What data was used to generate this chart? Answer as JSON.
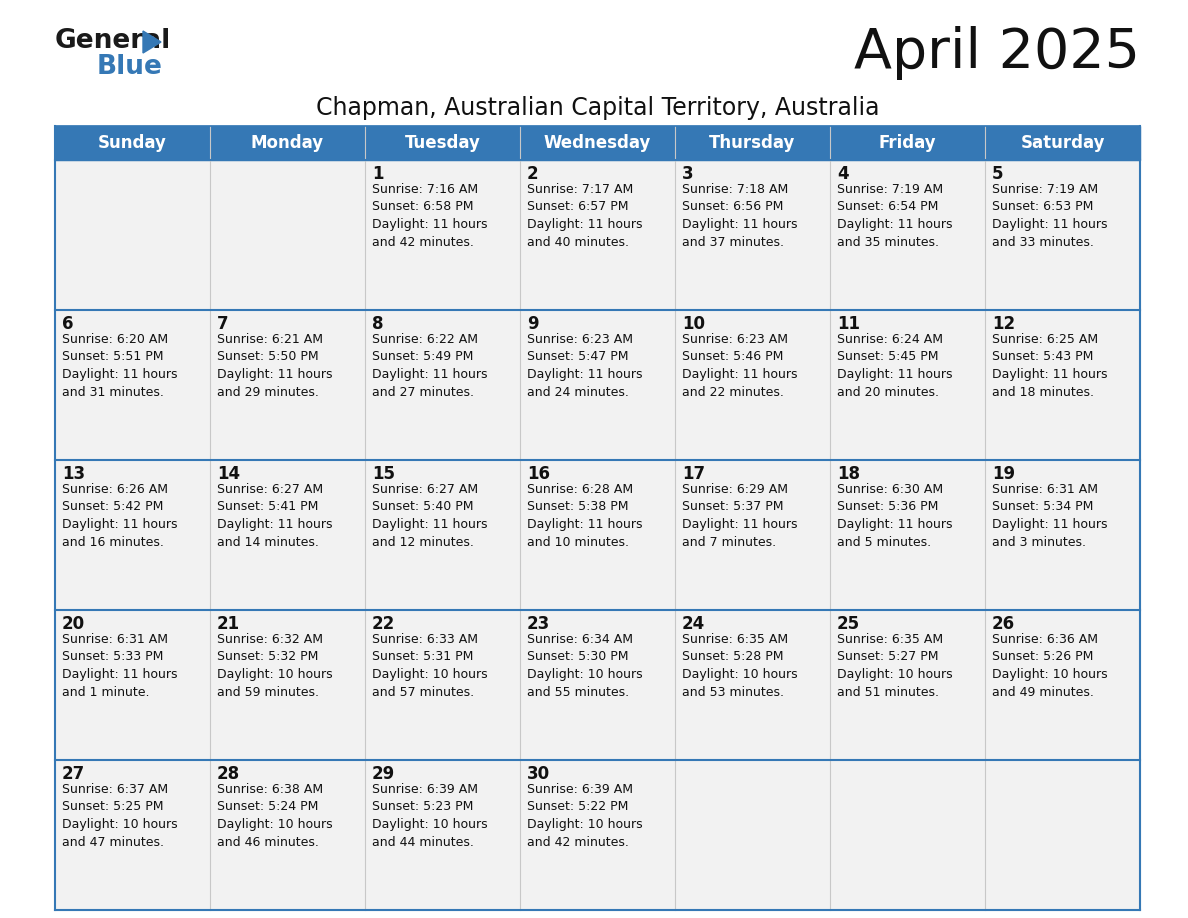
{
  "title": "April 2025",
  "subtitle": "Chapman, Australian Capital Territory, Australia",
  "header_color": "#3578b5",
  "header_text_color": "#ffffff",
  "cell_bg_color": "#f2f2f2",
  "border_color": "#3578b5",
  "days_of_week": [
    "Sunday",
    "Monday",
    "Tuesday",
    "Wednesday",
    "Thursday",
    "Friday",
    "Saturday"
  ],
  "weeks": [
    [
      {
        "day": "",
        "text": ""
      },
      {
        "day": "",
        "text": ""
      },
      {
        "day": "1",
        "text": "Sunrise: 7:16 AM\nSunset: 6:58 PM\nDaylight: 11 hours\nand 42 minutes."
      },
      {
        "day": "2",
        "text": "Sunrise: 7:17 AM\nSunset: 6:57 PM\nDaylight: 11 hours\nand 40 minutes."
      },
      {
        "day": "3",
        "text": "Sunrise: 7:18 AM\nSunset: 6:56 PM\nDaylight: 11 hours\nand 37 minutes."
      },
      {
        "day": "4",
        "text": "Sunrise: 7:19 AM\nSunset: 6:54 PM\nDaylight: 11 hours\nand 35 minutes."
      },
      {
        "day": "5",
        "text": "Sunrise: 7:19 AM\nSunset: 6:53 PM\nDaylight: 11 hours\nand 33 minutes."
      }
    ],
    [
      {
        "day": "6",
        "text": "Sunrise: 6:20 AM\nSunset: 5:51 PM\nDaylight: 11 hours\nand 31 minutes."
      },
      {
        "day": "7",
        "text": "Sunrise: 6:21 AM\nSunset: 5:50 PM\nDaylight: 11 hours\nand 29 minutes."
      },
      {
        "day": "8",
        "text": "Sunrise: 6:22 AM\nSunset: 5:49 PM\nDaylight: 11 hours\nand 27 minutes."
      },
      {
        "day": "9",
        "text": "Sunrise: 6:23 AM\nSunset: 5:47 PM\nDaylight: 11 hours\nand 24 minutes."
      },
      {
        "day": "10",
        "text": "Sunrise: 6:23 AM\nSunset: 5:46 PM\nDaylight: 11 hours\nand 22 minutes."
      },
      {
        "day": "11",
        "text": "Sunrise: 6:24 AM\nSunset: 5:45 PM\nDaylight: 11 hours\nand 20 minutes."
      },
      {
        "day": "12",
        "text": "Sunrise: 6:25 AM\nSunset: 5:43 PM\nDaylight: 11 hours\nand 18 minutes."
      }
    ],
    [
      {
        "day": "13",
        "text": "Sunrise: 6:26 AM\nSunset: 5:42 PM\nDaylight: 11 hours\nand 16 minutes."
      },
      {
        "day": "14",
        "text": "Sunrise: 6:27 AM\nSunset: 5:41 PM\nDaylight: 11 hours\nand 14 minutes."
      },
      {
        "day": "15",
        "text": "Sunrise: 6:27 AM\nSunset: 5:40 PM\nDaylight: 11 hours\nand 12 minutes."
      },
      {
        "day": "16",
        "text": "Sunrise: 6:28 AM\nSunset: 5:38 PM\nDaylight: 11 hours\nand 10 minutes."
      },
      {
        "day": "17",
        "text": "Sunrise: 6:29 AM\nSunset: 5:37 PM\nDaylight: 11 hours\nand 7 minutes."
      },
      {
        "day": "18",
        "text": "Sunrise: 6:30 AM\nSunset: 5:36 PM\nDaylight: 11 hours\nand 5 minutes."
      },
      {
        "day": "19",
        "text": "Sunrise: 6:31 AM\nSunset: 5:34 PM\nDaylight: 11 hours\nand 3 minutes."
      }
    ],
    [
      {
        "day": "20",
        "text": "Sunrise: 6:31 AM\nSunset: 5:33 PM\nDaylight: 11 hours\nand 1 minute."
      },
      {
        "day": "21",
        "text": "Sunrise: 6:32 AM\nSunset: 5:32 PM\nDaylight: 10 hours\nand 59 minutes."
      },
      {
        "day": "22",
        "text": "Sunrise: 6:33 AM\nSunset: 5:31 PM\nDaylight: 10 hours\nand 57 minutes."
      },
      {
        "day": "23",
        "text": "Sunrise: 6:34 AM\nSunset: 5:30 PM\nDaylight: 10 hours\nand 55 minutes."
      },
      {
        "day": "24",
        "text": "Sunrise: 6:35 AM\nSunset: 5:28 PM\nDaylight: 10 hours\nand 53 minutes."
      },
      {
        "day": "25",
        "text": "Sunrise: 6:35 AM\nSunset: 5:27 PM\nDaylight: 10 hours\nand 51 minutes."
      },
      {
        "day": "26",
        "text": "Sunrise: 6:36 AM\nSunset: 5:26 PM\nDaylight: 10 hours\nand 49 minutes."
      }
    ],
    [
      {
        "day": "27",
        "text": "Sunrise: 6:37 AM\nSunset: 5:25 PM\nDaylight: 10 hours\nand 47 minutes."
      },
      {
        "day": "28",
        "text": "Sunrise: 6:38 AM\nSunset: 5:24 PM\nDaylight: 10 hours\nand 46 minutes."
      },
      {
        "day": "29",
        "text": "Sunrise: 6:39 AM\nSunset: 5:23 PM\nDaylight: 10 hours\nand 44 minutes."
      },
      {
        "day": "30",
        "text": "Sunrise: 6:39 AM\nSunset: 5:22 PM\nDaylight: 10 hours\nand 42 minutes."
      },
      {
        "day": "",
        "text": ""
      },
      {
        "day": "",
        "text": ""
      },
      {
        "day": "",
        "text": ""
      }
    ]
  ],
  "logo_color_general": "#1a1a1a",
  "logo_color_blue": "#3578b5",
  "logo_triangle_color": "#3578b5",
  "title_fontsize": 40,
  "subtitle_fontsize": 17,
  "dow_fontsize": 12,
  "day_num_fontsize": 12,
  "cell_text_fontsize": 9
}
